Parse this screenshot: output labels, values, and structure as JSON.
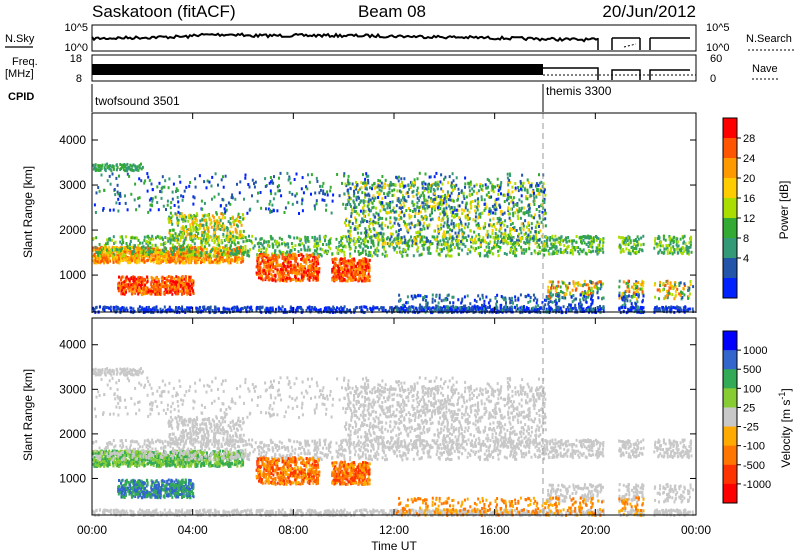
{
  "chart_data": [
    {
      "type": "header",
      "station": "Saskatoon (fitACF)",
      "beam": "Beam 08",
      "date": "20/Jun/2012"
    },
    {
      "type": "line",
      "panel": "noise",
      "left_label": "N.Sky",
      "right_label": "N.Search",
      "left_ticks": [
        "10^5",
        "10^0"
      ],
      "right_ticks": [
        "10^5",
        "10^0"
      ]
    },
    {
      "type": "line",
      "panel": "frequency",
      "left_label_1": "Freq.",
      "left_label_2": "[MHz]",
      "right_label": "Nave",
      "left_ticks": [
        "18",
        "8"
      ],
      "right_ticks": [
        "60",
        "0"
      ]
    },
    {
      "type": "table",
      "panel": "cpid",
      "label": "CPID",
      "modes": [
        {
          "name": "twofsound 3501",
          "start_hour": 0,
          "end_hour": 18
        },
        {
          "name": "themis 3300",
          "start_hour": 18,
          "end_hour": 24
        }
      ]
    },
    {
      "type": "heatmap",
      "panel": "power",
      "ylabel": "Slant Range [km]",
      "ylim": [
        180,
        4600
      ],
      "yticks": [
        1000,
        2000,
        3000,
        4000
      ],
      "colorbar": {
        "label": "Power [dB]",
        "ticks": [
          "28",
          "24",
          "20",
          "16",
          "12",
          "8",
          "4"
        ],
        "colors": [
          "#ff0000",
          "#ff5500",
          "#ff9900",
          "#ffcc00",
          "#aadd00",
          "#33aa33",
          "#339977",
          "#2255aa",
          "#0022ff"
        ]
      }
    },
    {
      "type": "heatmap",
      "panel": "velocity",
      "ylabel": "Slant Range [km]",
      "ylim": [
        180,
        4600
      ],
      "yticks": [
        1000,
        2000,
        3000,
        4000
      ],
      "colorbar": {
        "label_main": "Velocity",
        "label_unit": "[m s",
        "label_exp": "-1",
        "label_close": "]",
        "ticks": [
          "1000",
          "500",
          "100",
          "25",
          "-25",
          "-100",
          "-500",
          "-1000"
        ],
        "colors": [
          "#0000ff",
          "#3366cc",
          "#33aa55",
          "#88cc33",
          "#c8c8c8",
          "#ffaa00",
          "#ff7700",
          "#ff3300",
          "#ff0000"
        ]
      }
    },
    {
      "type": "axis",
      "panel": "time",
      "xlabel": "Time UT",
      "xlim": [
        0,
        24
      ],
      "xticks": [
        "00:00",
        "04:00",
        "08:00",
        "12:00",
        "16:00",
        "20:00",
        "00:00"
      ]
    }
  ]
}
